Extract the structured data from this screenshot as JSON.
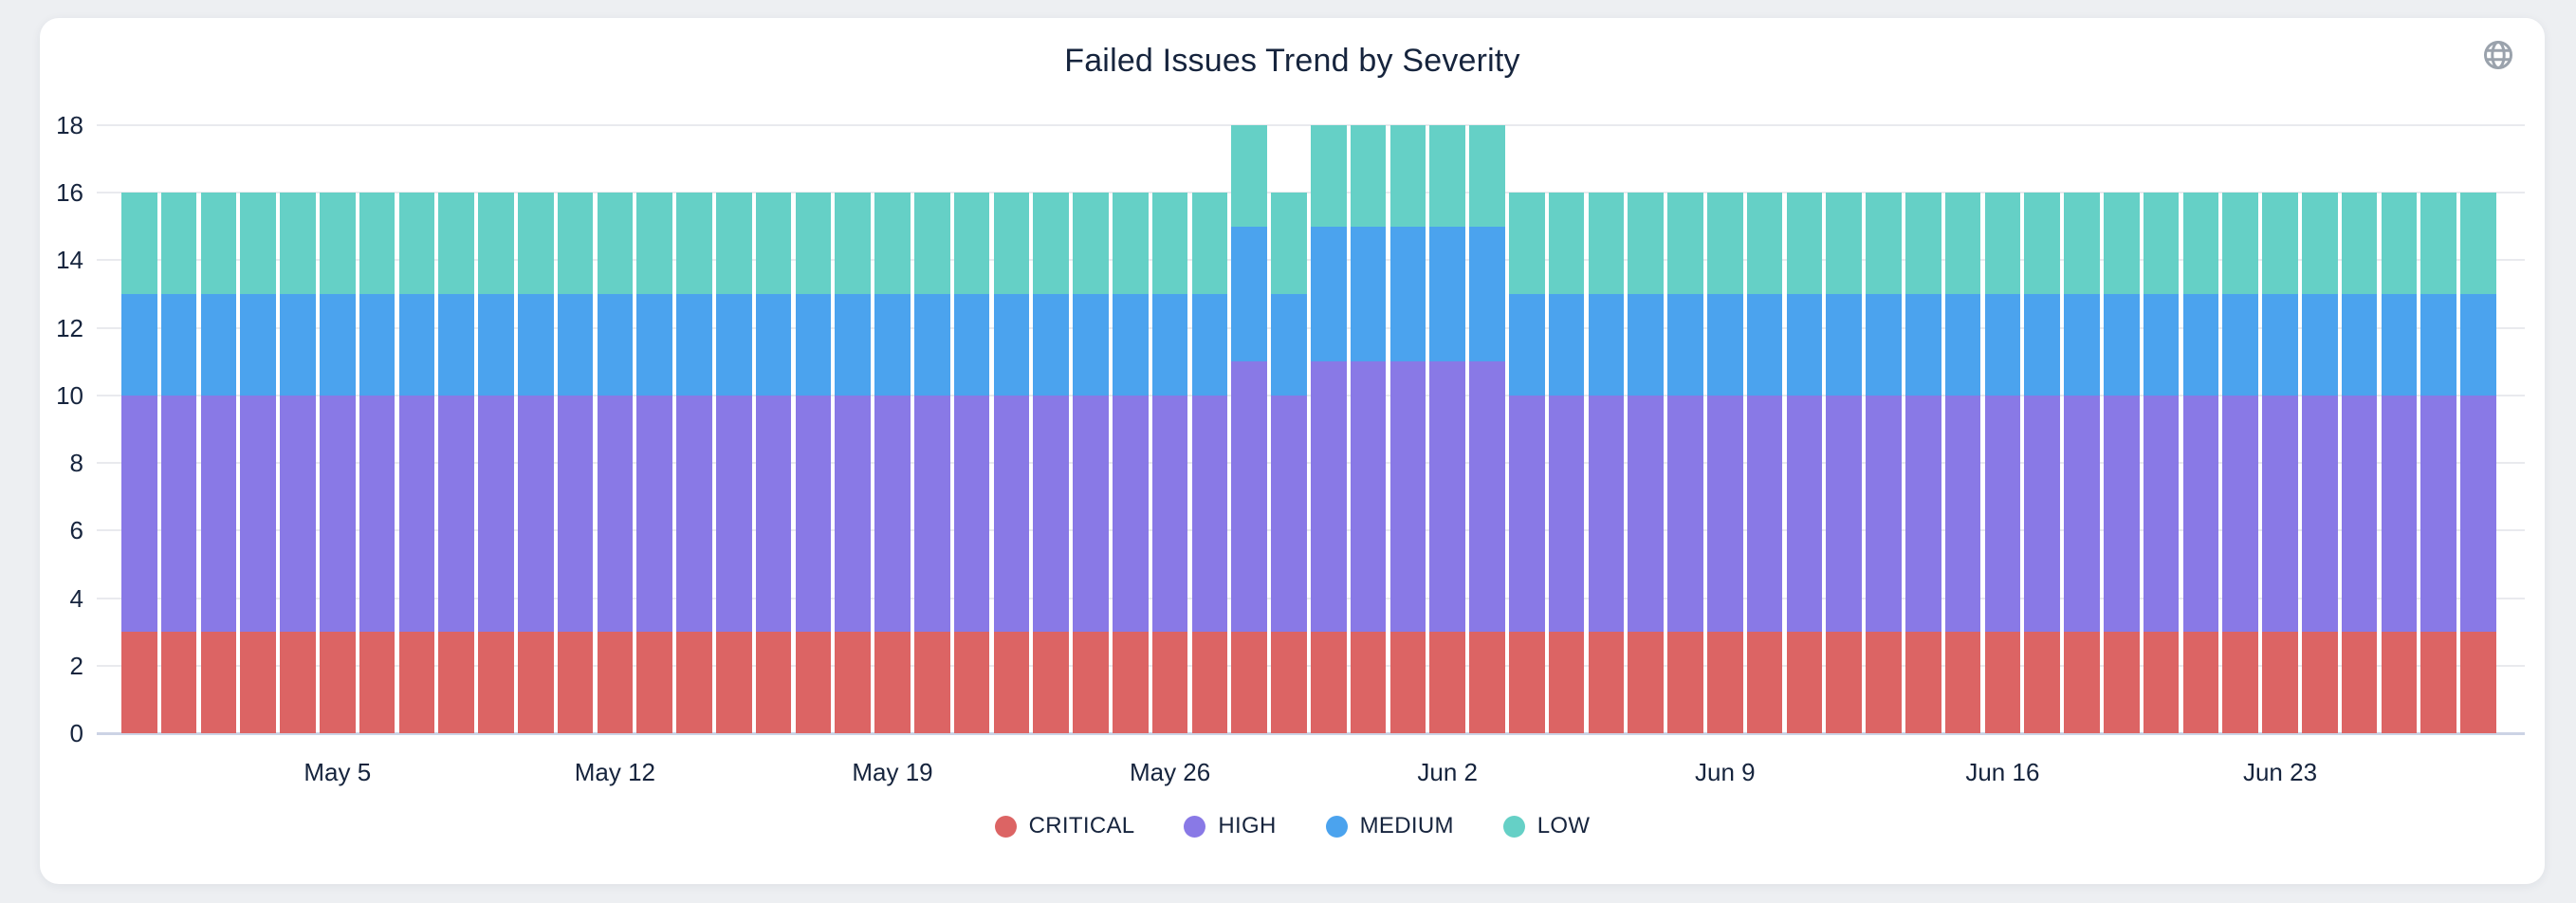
{
  "card": {
    "title": "Failed Issues Trend by Severity",
    "globe_icon": "globe-icon",
    "globe_icon_color": "#9aa2ac"
  },
  "colors": {
    "critical": "#dc6464",
    "high": "#8979e6",
    "medium": "#4ba3ee",
    "low": "#65d0c6",
    "text": "#16243d",
    "gridline": "#e9eaee",
    "axis_line": "#ccd3e5",
    "card_background": "#ffffff",
    "page_background": "#edeff2"
  },
  "chart_data": {
    "type": "bar",
    "stacked": true,
    "title": "Failed Issues Trend by Severity",
    "xlabel": "",
    "ylabel": "",
    "ylim": [
      0,
      18
    ],
    "grid": true,
    "legend_position": "bottom",
    "y_ticks": [
      0,
      2,
      4,
      6,
      8,
      10,
      12,
      14,
      16,
      18
    ],
    "x": [
      "Apr 30",
      "May 1",
      "May 2",
      "May 3",
      "May 4",
      "May 5",
      "May 6",
      "May 7",
      "May 8",
      "May 9",
      "May 10",
      "May 11",
      "May 12",
      "May 13",
      "May 14",
      "May 15",
      "May 16",
      "May 17",
      "May 18",
      "May 19",
      "May 20",
      "May 21",
      "May 22",
      "May 23",
      "May 24",
      "May 25",
      "May 26",
      "May 27",
      "May 28",
      "May 29",
      "May 30",
      "May 31",
      "Jun 1",
      "Jun 2",
      "Jun 3",
      "Jun 4",
      "Jun 5",
      "Jun 6",
      "Jun 7",
      "Jun 8",
      "Jun 9",
      "Jun 10",
      "Jun 11",
      "Jun 12",
      "Jun 13",
      "Jun 14",
      "Jun 15",
      "Jun 16",
      "Jun 17",
      "Jun 18",
      "Jun 19",
      "Jun 20",
      "Jun 21",
      "Jun 22",
      "Jun 23",
      "Jun 24",
      "Jun 25",
      "Jun 26",
      "Jun 27",
      "Jun 28"
    ],
    "x_tick_labels": [
      "May 5",
      "May 12",
      "May 19",
      "May 26",
      "Jun 2",
      "Jun 9",
      "Jun 16",
      "Jun 23"
    ],
    "x_tick_indices": [
      5,
      12,
      19,
      26,
      33,
      40,
      47,
      54
    ],
    "series": [
      {
        "name": "CRITICAL",
        "color": "#dc6464",
        "values": [
          3,
          3,
          3,
          3,
          3,
          3,
          3,
          3,
          3,
          3,
          3,
          3,
          3,
          3,
          3,
          3,
          3,
          3,
          3,
          3,
          3,
          3,
          3,
          3,
          3,
          3,
          3,
          3,
          3,
          3,
          3,
          3,
          3,
          3,
          3,
          3,
          3,
          3,
          3,
          3,
          3,
          3,
          3,
          3,
          3,
          3,
          3,
          3,
          3,
          3,
          3,
          3,
          3,
          3,
          3,
          3,
          3,
          3,
          3,
          3
        ]
      },
      {
        "name": "HIGH",
        "color": "#8979e6",
        "values": [
          7,
          7,
          7,
          7,
          7,
          7,
          7,
          7,
          7,
          7,
          7,
          7,
          7,
          7,
          7,
          7,
          7,
          7,
          7,
          7,
          7,
          7,
          7,
          7,
          7,
          7,
          7,
          7,
          8,
          7,
          8,
          8,
          8,
          8,
          8,
          7,
          7,
          7,
          7,
          7,
          7,
          7,
          7,
          7,
          7,
          7,
          7,
          7,
          7,
          7,
          7,
          7,
          7,
          7,
          7,
          7,
          7,
          7,
          7,
          7
        ]
      },
      {
        "name": "MEDIUM",
        "color": "#4ba3ee",
        "values": [
          3,
          3,
          3,
          3,
          3,
          3,
          3,
          3,
          3,
          3,
          3,
          3,
          3,
          3,
          3,
          3,
          3,
          3,
          3,
          3,
          3,
          3,
          3,
          3,
          3,
          3,
          3,
          3,
          4,
          3,
          4,
          4,
          4,
          4,
          4,
          3,
          3,
          3,
          3,
          3,
          3,
          3,
          3,
          3,
          3,
          3,
          3,
          3,
          3,
          3,
          3,
          3,
          3,
          3,
          3,
          3,
          3,
          3,
          3,
          3
        ]
      },
      {
        "name": "LOW",
        "color": "#65d0c6",
        "values": [
          3,
          3,
          3,
          3,
          3,
          3,
          3,
          3,
          3,
          3,
          3,
          3,
          3,
          3,
          3,
          3,
          3,
          3,
          3,
          3,
          3,
          3,
          3,
          3,
          3,
          3,
          3,
          3,
          3,
          3,
          3,
          3,
          3,
          3,
          3,
          3,
          3,
          3,
          3,
          3,
          3,
          3,
          3,
          3,
          3,
          3,
          3,
          3,
          3,
          3,
          3,
          3,
          3,
          3,
          3,
          3,
          3,
          3,
          3,
          3
        ]
      }
    ]
  }
}
